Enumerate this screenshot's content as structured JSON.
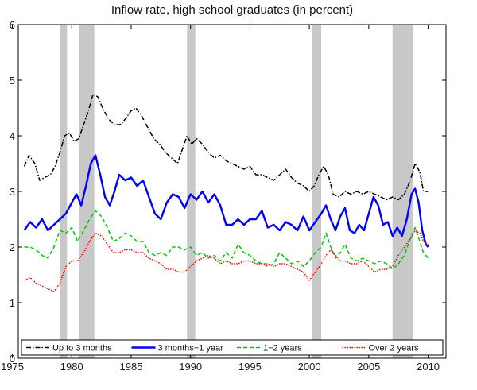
{
  "chart_data": {
    "type": "line",
    "title": "Inflow rate, high school graduates (in percent)",
    "xlabel": "",
    "ylabel": "",
    "xlim": [
      1975.5,
      2011.5
    ],
    "ylim": [
      0,
      6
    ],
    "x_ticks": [
      1975,
      1980,
      1985,
      1990,
      1995,
      2000,
      2005,
      2010
    ],
    "y_ticks": [
      0,
      1,
      2,
      3,
      4,
      5,
      6
    ],
    "recessions": [
      [
        1979.0,
        1979.6
      ],
      [
        1980.6,
        1981.9
      ],
      [
        1989.7,
        1990.4
      ],
      [
        2000.2,
        2001.0
      ],
      [
        2007.0,
        2008.7
      ]
    ],
    "legend_position": "bottom",
    "series": [
      {
        "name": "Up to 3 months",
        "color": "#000000",
        "style": "dashdot",
        "points": [
          [
            1976.0,
            3.45
          ],
          [
            1976.4,
            3.65
          ],
          [
            1976.9,
            3.5
          ],
          [
            1977.3,
            3.2
          ],
          [
            1977.7,
            3.25
          ],
          [
            1978.2,
            3.3
          ],
          [
            1978.6,
            3.45
          ],
          [
            1979.0,
            3.7
          ],
          [
            1979.4,
            4.0
          ],
          [
            1979.8,
            4.05
          ],
          [
            1980.2,
            3.9
          ],
          [
            1980.6,
            3.95
          ],
          [
            1981.0,
            4.2
          ],
          [
            1981.4,
            4.45
          ],
          [
            1981.8,
            4.75
          ],
          [
            1982.2,
            4.7
          ],
          [
            1982.6,
            4.5
          ],
          [
            1983.1,
            4.3
          ],
          [
            1983.6,
            4.2
          ],
          [
            1984.1,
            4.2
          ],
          [
            1984.5,
            4.3
          ],
          [
            1985.0,
            4.45
          ],
          [
            1985.4,
            4.5
          ],
          [
            1985.9,
            4.35
          ],
          [
            1986.4,
            4.15
          ],
          [
            1986.9,
            3.95
          ],
          [
            1987.4,
            3.85
          ],
          [
            1987.9,
            3.7
          ],
          [
            1988.4,
            3.6
          ],
          [
            1988.9,
            3.5
          ],
          [
            1989.3,
            3.75
          ],
          [
            1989.7,
            4.0
          ],
          [
            1990.1,
            3.85
          ],
          [
            1990.5,
            3.95
          ],
          [
            1991.0,
            3.85
          ],
          [
            1991.5,
            3.7
          ],
          [
            1992.0,
            3.6
          ],
          [
            1992.5,
            3.65
          ],
          [
            1993.0,
            3.55
          ],
          [
            1993.5,
            3.5
          ],
          [
            1994.0,
            3.45
          ],
          [
            1994.5,
            3.4
          ],
          [
            1995.0,
            3.45
          ],
          [
            1995.5,
            3.3
          ],
          [
            1996.0,
            3.3
          ],
          [
            1996.5,
            3.25
          ],
          [
            1997.0,
            3.2
          ],
          [
            1997.5,
            3.3
          ],
          [
            1998.0,
            3.4
          ],
          [
            1998.5,
            3.25
          ],
          [
            1999.0,
            3.15
          ],
          [
            1999.5,
            3.1
          ],
          [
            2000.0,
            3.0
          ],
          [
            2000.4,
            3.1
          ],
          [
            2000.8,
            3.3
          ],
          [
            2001.2,
            3.45
          ],
          [
            2001.6,
            3.3
          ],
          [
            2002.0,
            2.95
          ],
          [
            2002.5,
            2.9
          ],
          [
            2003.0,
            3.0
          ],
          [
            2003.5,
            2.95
          ],
          [
            2004.0,
            3.0
          ],
          [
            2004.5,
            2.95
          ],
          [
            2005.0,
            3.0
          ],
          [
            2005.5,
            2.95
          ],
          [
            2006.0,
            2.9
          ],
          [
            2006.5,
            2.85
          ],
          [
            2007.0,
            2.9
          ],
          [
            2007.5,
            2.85
          ],
          [
            2008.0,
            2.95
          ],
          [
            2008.5,
            3.2
          ],
          [
            2008.9,
            3.5
          ],
          [
            2009.3,
            3.35
          ],
          [
            2009.6,
            3.0
          ],
          [
            2010.0,
            3.0
          ]
        ]
      },
      {
        "name": "3 months−1 year",
        "color": "#0000ff",
        "style": "solid",
        "points": [
          [
            1976.0,
            2.3
          ],
          [
            1976.5,
            2.45
          ],
          [
            1977.0,
            2.35
          ],
          [
            1977.5,
            2.5
          ],
          [
            1978.0,
            2.3
          ],
          [
            1978.5,
            2.4
          ],
          [
            1979.0,
            2.5
          ],
          [
            1979.5,
            2.6
          ],
          [
            1980.0,
            2.8
          ],
          [
            1980.4,
            2.95
          ],
          [
            1980.8,
            2.75
          ],
          [
            1981.2,
            3.1
          ],
          [
            1981.6,
            3.5
          ],
          [
            1982.0,
            3.65
          ],
          [
            1982.4,
            3.3
          ],
          [
            1982.8,
            2.9
          ],
          [
            1983.2,
            2.75
          ],
          [
            1983.6,
            3.0
          ],
          [
            1984.0,
            3.3
          ],
          [
            1984.5,
            3.2
          ],
          [
            1985.0,
            3.25
          ],
          [
            1985.5,
            3.1
          ],
          [
            1986.0,
            3.2
          ],
          [
            1986.5,
            2.9
          ],
          [
            1987.0,
            2.6
          ],
          [
            1987.5,
            2.5
          ],
          [
            1988.0,
            2.8
          ],
          [
            1988.5,
            2.95
          ],
          [
            1989.0,
            2.9
          ],
          [
            1989.5,
            2.7
          ],
          [
            1990.0,
            2.95
          ],
          [
            1990.5,
            2.85
          ],
          [
            1991.0,
            3.0
          ],
          [
            1991.5,
            2.8
          ],
          [
            1992.0,
            2.95
          ],
          [
            1992.5,
            2.75
          ],
          [
            1993.0,
            2.4
          ],
          [
            1993.5,
            2.4
          ],
          [
            1994.0,
            2.5
          ],
          [
            1994.5,
            2.4
          ],
          [
            1995.0,
            2.5
          ],
          [
            1995.5,
            2.5
          ],
          [
            1996.0,
            2.65
          ],
          [
            1996.5,
            2.35
          ],
          [
            1997.0,
            2.4
          ],
          [
            1997.5,
            2.3
          ],
          [
            1998.0,
            2.45
          ],
          [
            1998.5,
            2.4
          ],
          [
            1999.0,
            2.3
          ],
          [
            1999.5,
            2.55
          ],
          [
            2000.0,
            2.3
          ],
          [
            2000.5,
            2.45
          ],
          [
            2001.0,
            2.6
          ],
          [
            2001.4,
            2.75
          ],
          [
            2001.8,
            2.5
          ],
          [
            2002.2,
            2.3
          ],
          [
            2002.6,
            2.55
          ],
          [
            2003.0,
            2.7
          ],
          [
            2003.4,
            2.3
          ],
          [
            2003.8,
            2.25
          ],
          [
            2004.2,
            2.4
          ],
          [
            2004.6,
            2.3
          ],
          [
            2005.0,
            2.6
          ],
          [
            2005.4,
            2.9
          ],
          [
            2005.8,
            2.75
          ],
          [
            2006.2,
            2.4
          ],
          [
            2006.6,
            2.45
          ],
          [
            2007.0,
            2.2
          ],
          [
            2007.4,
            2.35
          ],
          [
            2007.8,
            2.2
          ],
          [
            2008.2,
            2.5
          ],
          [
            2008.6,
            2.95
          ],
          [
            2008.9,
            3.05
          ],
          [
            2009.2,
            2.8
          ],
          [
            2009.5,
            2.3
          ],
          [
            2009.8,
            2.05
          ],
          [
            2010.0,
            2.0
          ]
        ]
      },
      {
        "name": "1−2 years",
        "color": "#00c800",
        "style": "dashed",
        "points": [
          [
            1976.0,
            2.0
          ],
          [
            1976.5,
            2.0
          ],
          [
            1977.0,
            1.95
          ],
          [
            1977.5,
            1.85
          ],
          [
            1978.0,
            1.8
          ],
          [
            1978.5,
            2.0
          ],
          [
            1979.0,
            2.3
          ],
          [
            1979.5,
            2.25
          ],
          [
            1980.0,
            2.35
          ],
          [
            1980.5,
            2.1
          ],
          [
            1981.0,
            2.3
          ],
          [
            1981.5,
            2.5
          ],
          [
            1982.0,
            2.65
          ],
          [
            1982.5,
            2.55
          ],
          [
            1983.0,
            2.35
          ],
          [
            1983.5,
            2.1
          ],
          [
            1984.0,
            2.15
          ],
          [
            1984.5,
            2.25
          ],
          [
            1985.0,
            2.2
          ],
          [
            1985.5,
            2.1
          ],
          [
            1986.0,
            2.1
          ],
          [
            1986.5,
            1.9
          ],
          [
            1987.0,
            1.85
          ],
          [
            1987.5,
            1.9
          ],
          [
            1988.0,
            1.85
          ],
          [
            1988.5,
            2.0
          ],
          [
            1989.0,
            2.0
          ],
          [
            1989.5,
            1.95
          ],
          [
            1990.0,
            2.0
          ],
          [
            1990.5,
            1.85
          ],
          [
            1991.0,
            1.9
          ],
          [
            1991.5,
            1.8
          ],
          [
            1992.0,
            1.85
          ],
          [
            1992.5,
            1.75
          ],
          [
            1993.0,
            1.9
          ],
          [
            1993.5,
            1.8
          ],
          [
            1994.0,
            2.05
          ],
          [
            1994.5,
            1.9
          ],
          [
            1995.0,
            1.85
          ],
          [
            1995.5,
            1.75
          ],
          [
            1996.0,
            1.7
          ],
          [
            1996.5,
            1.65
          ],
          [
            1997.0,
            1.7
          ],
          [
            1997.5,
            1.9
          ],
          [
            1998.0,
            1.8
          ],
          [
            1998.5,
            1.7
          ],
          [
            1999.0,
            1.75
          ],
          [
            1999.5,
            1.65
          ],
          [
            2000.0,
            1.75
          ],
          [
            2000.5,
            1.9
          ],
          [
            2001.0,
            2.0
          ],
          [
            2001.4,
            2.25
          ],
          [
            2001.8,
            2.0
          ],
          [
            2002.2,
            1.8
          ],
          [
            2002.6,
            1.9
          ],
          [
            2003.0,
            2.05
          ],
          [
            2003.5,
            1.8
          ],
          [
            2004.0,
            1.75
          ],
          [
            2004.5,
            1.8
          ],
          [
            2005.0,
            1.75
          ],
          [
            2005.5,
            1.7
          ],
          [
            2006.0,
            1.75
          ],
          [
            2006.5,
            1.7
          ],
          [
            2007.0,
            1.6
          ],
          [
            2007.5,
            1.7
          ],
          [
            2008.0,
            1.85
          ],
          [
            2008.5,
            2.15
          ],
          [
            2008.9,
            2.35
          ],
          [
            2009.3,
            2.1
          ],
          [
            2009.6,
            1.9
          ],
          [
            2010.0,
            1.8
          ]
        ]
      },
      {
        "name": "Over 2 years",
        "color": "#ff0000",
        "style": "dotted",
        "points": [
          [
            1976.0,
            1.4
          ],
          [
            1976.5,
            1.45
          ],
          [
            1977.0,
            1.35
          ],
          [
            1977.5,
            1.3
          ],
          [
            1978.0,
            1.25
          ],
          [
            1978.5,
            1.2
          ],
          [
            1979.0,
            1.35
          ],
          [
            1979.5,
            1.65
          ],
          [
            1980.0,
            1.75
          ],
          [
            1980.5,
            1.75
          ],
          [
            1981.0,
            1.9
          ],
          [
            1981.5,
            2.1
          ],
          [
            1982.0,
            2.25
          ],
          [
            1982.5,
            2.2
          ],
          [
            1983.0,
            2.05
          ],
          [
            1983.5,
            1.9
          ],
          [
            1984.0,
            1.9
          ],
          [
            1984.5,
            1.95
          ],
          [
            1985.0,
            1.95
          ],
          [
            1985.5,
            1.9
          ],
          [
            1986.0,
            1.9
          ],
          [
            1986.5,
            1.8
          ],
          [
            1987.0,
            1.75
          ],
          [
            1987.5,
            1.7
          ],
          [
            1988.0,
            1.6
          ],
          [
            1988.5,
            1.6
          ],
          [
            1989.0,
            1.55
          ],
          [
            1989.5,
            1.55
          ],
          [
            1990.0,
            1.65
          ],
          [
            1990.5,
            1.75
          ],
          [
            1991.0,
            1.8
          ],
          [
            1991.5,
            1.85
          ],
          [
            1992.0,
            1.8
          ],
          [
            1992.5,
            1.7
          ],
          [
            1993.0,
            1.75
          ],
          [
            1993.5,
            1.7
          ],
          [
            1994.0,
            1.7
          ],
          [
            1994.5,
            1.75
          ],
          [
            1995.0,
            1.75
          ],
          [
            1995.5,
            1.7
          ],
          [
            1996.0,
            1.7
          ],
          [
            1996.5,
            1.7
          ],
          [
            1997.0,
            1.65
          ],
          [
            1997.5,
            1.7
          ],
          [
            1998.0,
            1.7
          ],
          [
            1998.5,
            1.65
          ],
          [
            1999.0,
            1.6
          ],
          [
            1999.5,
            1.55
          ],
          [
            2000.0,
            1.4
          ],
          [
            2000.5,
            1.55
          ],
          [
            2001.0,
            1.7
          ],
          [
            2001.4,
            1.85
          ],
          [
            2001.8,
            1.95
          ],
          [
            2002.2,
            1.85
          ],
          [
            2002.6,
            1.75
          ],
          [
            2003.0,
            1.75
          ],
          [
            2003.5,
            1.7
          ],
          [
            2004.0,
            1.7
          ],
          [
            2004.5,
            1.75
          ],
          [
            2005.0,
            1.65
          ],
          [
            2005.5,
            1.55
          ],
          [
            2006.0,
            1.6
          ],
          [
            2006.5,
            1.6
          ],
          [
            2007.0,
            1.65
          ],
          [
            2007.5,
            1.85
          ],
          [
            2008.0,
            2.0
          ],
          [
            2008.5,
            2.15
          ],
          [
            2008.9,
            2.3
          ],
          [
            2009.3,
            2.25
          ],
          [
            2009.6,
            2.1
          ],
          [
            2010.0,
            2.05
          ]
        ]
      }
    ]
  }
}
